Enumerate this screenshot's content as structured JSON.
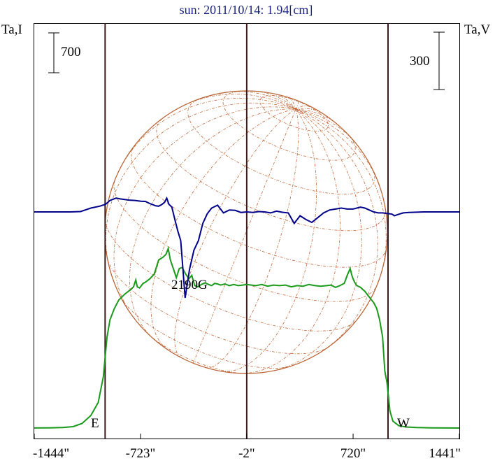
{
  "chart_data": {
    "type": "line",
    "title": "sun: 2011/10/14: 1.94[cm]",
    "left_axis_label": "Ta,I",
    "right_axis_label": "Ta,V",
    "left_scale_bar": "700",
    "right_scale_bar": "300",
    "east_label": "E",
    "west_label": "W",
    "annotation": "2190G",
    "x_ticks": [
      "-1444\"",
      "-723\"",
      "-2\"",
      "720\"",
      "1441\""
    ],
    "xlim": [
      -1444,
      1441
    ],
    "vertical_lines_arcsec": [
      -963,
      -2,
      957
    ],
    "grid": false,
    "series": [
      {
        "name": "Ta,I",
        "color": "#1a9a1a",
        "x": [
          -1444,
          -1340,
          -1250,
          -1180,
          -1120,
          -1060,
          -1010,
          -975,
          -950,
          -930,
          -900,
          -870,
          -830,
          -790,
          -770,
          -755,
          -745,
          -730,
          -705,
          -690,
          -660,
          -630,
          -600,
          -570,
          -550,
          -535,
          -520,
          -500,
          -480,
          -460,
          -440,
          -420,
          -395,
          -375,
          -355,
          -335,
          -310,
          -285,
          -260,
          -240,
          -220,
          -200,
          -180,
          -150,
          -120,
          -90,
          -60,
          -30,
          -2,
          30,
          60,
          100,
          140,
          180,
          220,
          260,
          300,
          340,
          380,
          420,
          460,
          500,
          540,
          570,
          600,
          630,
          660,
          680,
          700,
          715,
          730,
          745,
          770,
          800,
          830,
          860,
          880,
          900,
          920,
          935,
          950,
          970,
          990,
          1030,
          1080,
          1150,
          1250,
          1340,
          1441
        ],
        "y": [
          0.8,
          3,
          8,
          25,
          80,
          220,
          450,
          900,
          1600,
          1900,
          2100,
          2250,
          2350,
          2430,
          2480,
          2600,
          2480,
          2460,
          2540,
          2560,
          2620,
          2700,
          2950,
          3000,
          3050,
          3150,
          2950,
          2800,
          2640,
          2800,
          2820,
          2720,
          2620,
          2680,
          2500,
          2480,
          2520,
          2550,
          2520,
          2500,
          2540,
          2530,
          2510,
          2530,
          2500,
          2520,
          2500,
          2510,
          2520,
          2510,
          2500,
          2520,
          2490,
          2510,
          2500,
          2510,
          2480,
          2500,
          2490,
          2520,
          2500,
          2490,
          2500,
          2510,
          2470,
          2500,
          2540,
          2680,
          2800,
          2650,
          2560,
          2500,
          2470,
          2400,
          2300,
          2200,
          2100,
          1900,
          1600,
          1000,
          800,
          300,
          120,
          40,
          18,
          8,
          3,
          1,
          0.5
        ]
      },
      {
        "name": "Ta,V",
        "color": "#00008b",
        "x": [
          -1444,
          -1200,
          -1130,
          -1060,
          -1000,
          -960,
          -930,
          -890,
          -860,
          -830,
          -800,
          -760,
          -720,
          -690,
          -660,
          -640,
          -620,
          -600,
          -580,
          -560,
          -545,
          -530,
          -510,
          -490,
          -470,
          -450,
          -420,
          -390,
          -360,
          -330,
          -300,
          -270,
          -240,
          -200,
          -160,
          -120,
          -80,
          -40,
          -2,
          40,
          80,
          120,
          160,
          200,
          240,
          280,
          320,
          360,
          400,
          440,
          480,
          520,
          560,
          600,
          640,
          680,
          720,
          745,
          770,
          800,
          830,
          860,
          890,
          920,
          950,
          970,
          985,
          1000,
          1030,
          1060,
          1100,
          1200,
          1441
        ],
        "y": [
          0,
          0,
          2,
          20,
          30,
          40,
          60,
          72,
          68,
          65,
          62,
          60,
          56,
          55,
          44,
          38,
          32,
          30,
          38,
          50,
          72,
          40,
          25,
          -40,
          -100,
          -150,
          -450,
          -300,
          -200,
          -150,
          -60,
          -10,
          20,
          35,
          -5,
          10,
          8,
          -3,
          0,
          -3,
          2,
          0,
          -5,
          4,
          -2,
          -5,
          -60,
          -20,
          -40,
          -55,
          -30,
          -5,
          10,
          15,
          20,
          15,
          15,
          20,
          25,
          20,
          10,
          0,
          -5,
          -5,
          -8,
          -10,
          -12,
          -20,
          -12,
          -5,
          -3,
          0,
          0
        ]
      }
    ]
  }
}
